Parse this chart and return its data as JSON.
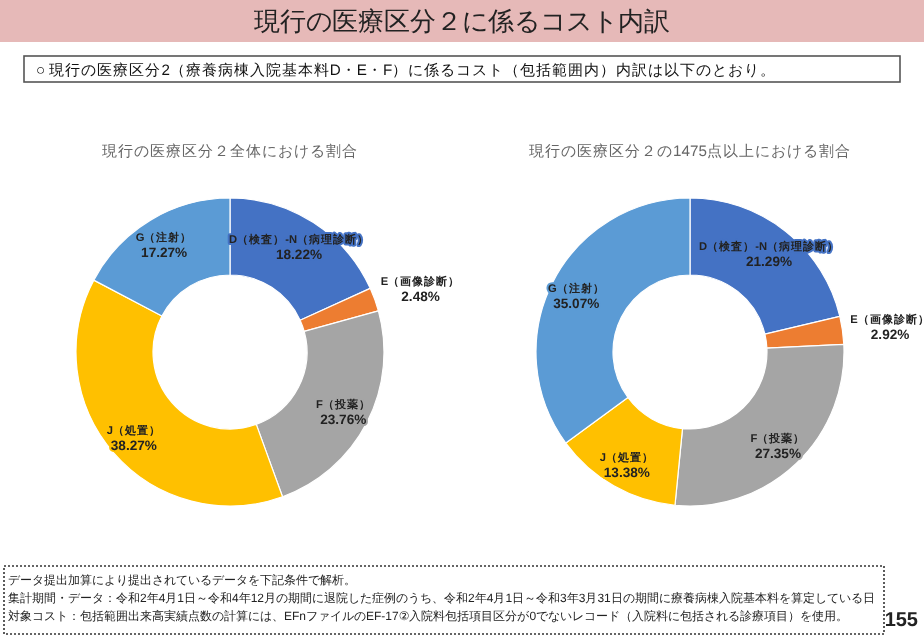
{
  "chart_data": [
    {
      "type": "other",
      "title": "現行の医療区分２に係るコスト内訳",
      "annotations": [
        "○ 現行の医療区分2（療養病棟入院基本料D・E・F）に係るコスト（包括範囲内）内訳は以下のとおり。"
      ]
    },
    {
      "type": "donut",
      "title": "現行の医療区分２全体における割合",
      "categories": [
        "D（検査）-N（病理診断）",
        "E（画像診断）",
        "F（投薬）",
        "J（処置）",
        "G（注射）"
      ],
      "values": [
        18.22,
        2.48,
        23.76,
        38.27,
        17.27
      ],
      "value_labels": [
        "18.22%",
        "2.48%",
        "23.76%",
        "38.27%",
        "17.27%"
      ],
      "colors": [
        "#4472c4",
        "#ed7d31",
        "#a5a5a5",
        "#ffc000",
        "#5b9bd5"
      ]
    },
    {
      "type": "donut",
      "title": "現行の医療区分２の1475点以上における割合",
      "categories": [
        "D（検査）-N（病理診断）",
        "E（画像診断）",
        "F（投薬）",
        "J（処置）",
        "G（注射）"
      ],
      "values": [
        21.29,
        2.92,
        27.35,
        13.38,
        35.07
      ],
      "value_labels": [
        "21.29%",
        "2.92%",
        "27.35%",
        "13.38%",
        "35.07%"
      ],
      "colors": [
        "#4472c4",
        "#ed7d31",
        "#a5a5a5",
        "#ffc000",
        "#5b9bd5"
      ]
    },
    {
      "type": "other",
      "annotations": [
        "データ提出加算により提出されているデータを下記条件で解析。",
        "集計期間・データ：令和2年4月1日～令和4年12月の期間に退院した症例のうち、令和2年4月1日～令和3年3月31日の期間に療養病棟入院基本料を算定している日",
        "対象コスト：包括範囲出来高実績点数の計算には、EFnファイルのEF-17②入院料包括項目区分が0でないレコード（入院料に包括される診療項目）を使用。",
        "155"
      ]
    }
  ]
}
